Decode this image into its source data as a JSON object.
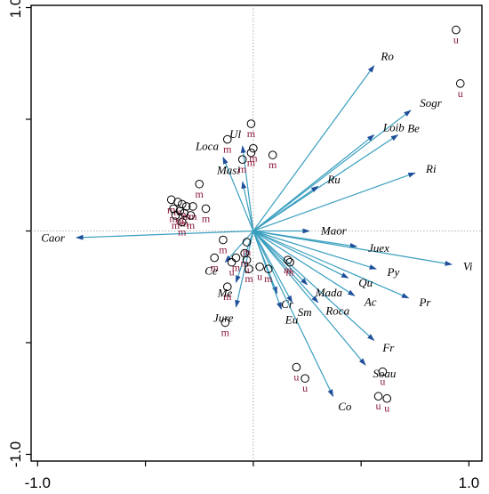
{
  "chart_data": {
    "type": "scatter",
    "subtype": "ordination-biplot",
    "title": "",
    "xlabel": "",
    "ylabel": "",
    "xlim": [
      -1.03,
      1.06
    ],
    "ylim": [
      -1.03,
      1.01
    ],
    "x_ticks": [
      {
        "value": -1.0,
        "label": "-1.0"
      },
      {
        "value": 1.0,
        "label": "1.0"
      }
    ],
    "y_ticks": [
      {
        "value": 1.0,
        "label": "1.0"
      },
      {
        "value": -1.0,
        "label": "-1.0"
      }
    ],
    "minor_ticks": [
      -0.5,
      0.0,
      0.5
    ],
    "reference_lines": {
      "x": 0,
      "y": 0,
      "style": "dotted"
    },
    "grid": false,
    "arrow_color": "#3a9fbf",
    "site_label_color": "#8b1a3a",
    "species": [
      {
        "name": "Ro",
        "x": 0.56,
        "y": 0.74
      },
      {
        "name": "Sogr",
        "x": 0.73,
        "y": 0.54
      },
      {
        "name": "Loib",
        "x": 0.56,
        "y": 0.43
      },
      {
        "name": "Be",
        "x": 0.67,
        "y": 0.43
      },
      {
        "name": "Ri",
        "x": 0.75,
        "y": 0.26
      },
      {
        "name": "Ru",
        "x": 0.3,
        "y": 0.2
      },
      {
        "name": "Ul",
        "x": -0.05,
        "y": 0.38
      },
      {
        "name": "Loca",
        "x": -0.14,
        "y": 0.33
      },
      {
        "name": "Masi",
        "x": -0.05,
        "y": 0.22
      },
      {
        "name": "Caor",
        "x": -0.82,
        "y": -0.03
      },
      {
        "name": "Maor",
        "x": 0.26,
        "y": 0.0
      },
      {
        "name": "Juex",
        "x": 0.48,
        "y": -0.07
      },
      {
        "name": "Vi",
        "x": 0.92,
        "y": -0.15
      },
      {
        "name": "Py",
        "x": 0.57,
        "y": -0.17
      },
      {
        "name": "Pr",
        "x": 0.72,
        "y": -0.3
      },
      {
        "name": "Qu",
        "x": 0.44,
        "y": -0.21
      },
      {
        "name": "Ac",
        "x": 0.47,
        "y": -0.29
      },
      {
        "name": "Mada",
        "x": 0.25,
        "y": -0.24
      },
      {
        "name": "Fr",
        "x": 0.56,
        "y": -0.49
      },
      {
        "name": "Roca",
        "x": 0.3,
        "y": -0.32
      },
      {
        "name": "Soau",
        "x": 0.52,
        "y": -0.6
      },
      {
        "name": "Co",
        "x": 0.37,
        "y": -0.74
      },
      {
        "name": "Sm",
        "x": 0.18,
        "y": -0.32
      },
      {
        "name": "Cr",
        "x": 0.11,
        "y": -0.28
      },
      {
        "name": "Eu",
        "x": 0.13,
        "y": -0.35
      },
      {
        "name": "Me",
        "x": -0.08,
        "y": -0.23
      },
      {
        "name": "Ce",
        "x": -0.13,
        "y": -0.14
      },
      {
        "name": "Jure",
        "x": -0.08,
        "y": -0.34
      }
    ],
    "sites": [
      {
        "x": 0.94,
        "y": 0.9,
        "label": "u"
      },
      {
        "x": 0.96,
        "y": 0.66,
        "label": "u"
      },
      {
        "x": -0.01,
        "y": 0.48,
        "label": "m"
      },
      {
        "x": -0.12,
        "y": 0.41,
        "label": "m"
      },
      {
        "x": 0.0,
        "y": 0.37,
        "label": "m"
      },
      {
        "x": 0.09,
        "y": 0.34,
        "label": "m"
      },
      {
        "x": -0.05,
        "y": 0.32,
        "label": "m"
      },
      {
        "x": -0.01,
        "y": 0.35,
        "label": "m"
      },
      {
        "x": -0.25,
        "y": 0.21,
        "label": "m"
      },
      {
        "x": -0.38,
        "y": 0.14,
        "label": "m"
      },
      {
        "x": -0.35,
        "y": 0.13,
        "label": "m"
      },
      {
        "x": -0.33,
        "y": 0.12,
        "label": "m"
      },
      {
        "x": -0.31,
        "y": 0.11,
        "label": "m"
      },
      {
        "x": -0.28,
        "y": 0.11,
        "label": "m"
      },
      {
        "x": -0.37,
        "y": 0.1,
        "label": "m"
      },
      {
        "x": -0.34,
        "y": 0.09,
        "label": "m"
      },
      {
        "x": -0.32,
        "y": 0.08,
        "label": "m"
      },
      {
        "x": -0.36,
        "y": 0.07,
        "label": "m"
      },
      {
        "x": -0.29,
        "y": 0.07,
        "label": "m"
      },
      {
        "x": -0.33,
        "y": 0.04,
        "label": "m"
      },
      {
        "x": -0.22,
        "y": 0.1,
        "label": "m"
      },
      {
        "x": -0.14,
        "y": -0.04,
        "label": "m"
      },
      {
        "x": -0.08,
        "y": -0.12,
        "label": "m"
      },
      {
        "x": -0.03,
        "y": -0.05,
        "label": "m"
      },
      {
        "x": -0.04,
        "y": -0.1,
        "label": "m"
      },
      {
        "x": -0.03,
        "y": -0.13,
        "label": "u"
      },
      {
        "x": -0.02,
        "y": -0.17,
        "label": "m"
      },
      {
        "x": -0.18,
        "y": -0.12,
        "label": "m"
      },
      {
        "x": -0.1,
        "y": -0.14,
        "label": "u"
      },
      {
        "x": 0.03,
        "y": -0.16,
        "label": "u"
      },
      {
        "x": 0.07,
        "y": -0.17,
        "label": "m"
      },
      {
        "x": 0.16,
        "y": -0.13,
        "label": "m"
      },
      {
        "x": 0.17,
        "y": -0.14,
        "label": "m"
      },
      {
        "x": -0.12,
        "y": -0.25,
        "label": "m"
      },
      {
        "x": -0.13,
        "y": -0.41,
        "label": "m"
      },
      {
        "x": 0.2,
        "y": -0.61,
        "label": "u"
      },
      {
        "x": 0.24,
        "y": -0.66,
        "label": "u"
      },
      {
        "x": 0.6,
        "y": -0.63,
        "label": "u"
      },
      {
        "x": 0.58,
        "y": -0.74,
        "label": "u"
      },
      {
        "x": 0.62,
        "y": -0.75,
        "label": "u"
      }
    ]
  }
}
